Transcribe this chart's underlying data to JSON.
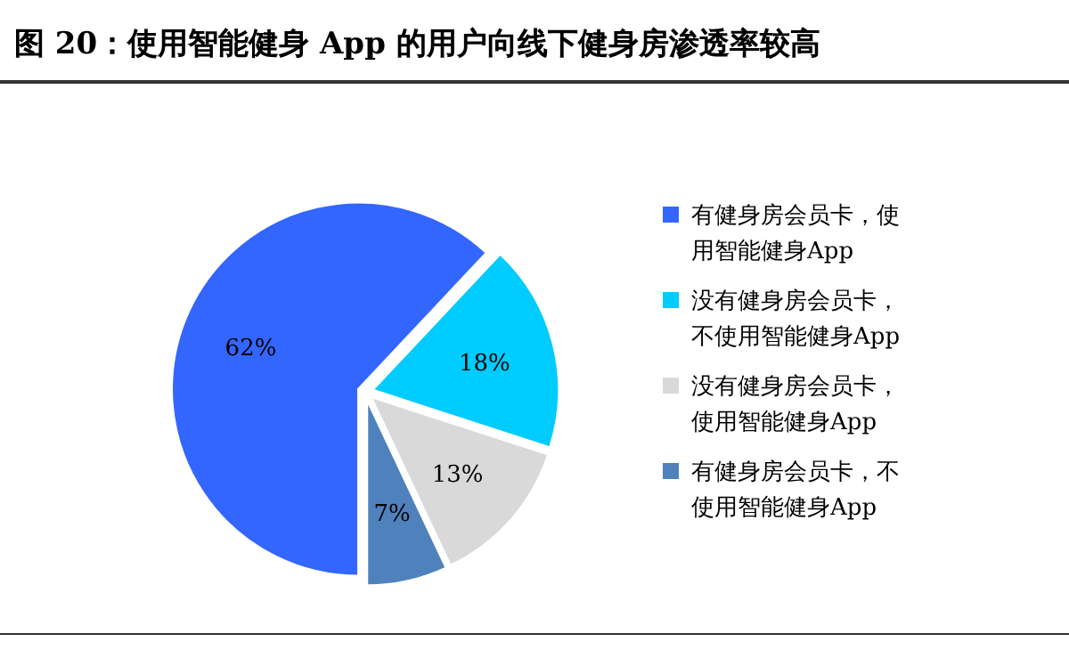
{
  "chart_data": {
    "type": "pie",
    "title": "图 20：使用智能健身 App 的用户向线下健身房渗透率较高",
    "categories": [
      "有健身房会员卡，使用智能健身App",
      "没有健身房会员卡，不使用智能健身App",
      "没有健身房会员卡，使用智能健身App",
      "有健身房会员卡，不使用智能健身App"
    ],
    "values": [
      62,
      18,
      13,
      7
    ],
    "value_labels": [
      "62%",
      "18%",
      "13%",
      "7%"
    ],
    "colors": [
      "#3366ff",
      "#00ccff",
      "#d9d9d9",
      "#4f81bd"
    ],
    "legend": "right"
  }
}
